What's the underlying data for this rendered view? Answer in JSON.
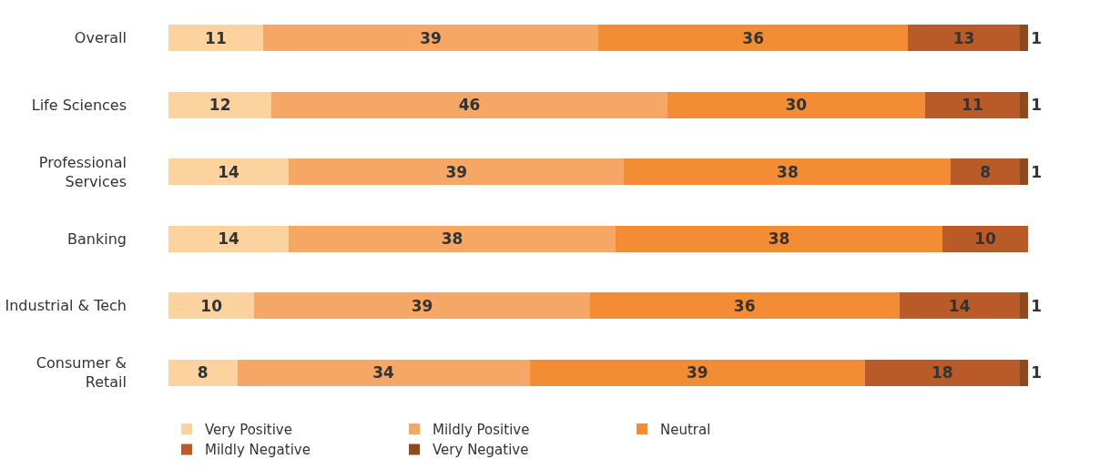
{
  "chart_data": {
    "type": "bar",
    "orientation": "horizontal",
    "stacked": true,
    "data_labels": true,
    "legend": "bottom",
    "categories": [
      "Overall",
      "Life Sciences",
      "Professional\nServices",
      "Banking",
      "Industrial & Tech",
      "Consumer &\nRetail"
    ],
    "series": [
      {
        "name": "Very Positive",
        "color": "#fcd29f",
        "values": [
          11,
          12,
          14,
          14,
          10,
          8
        ]
      },
      {
        "name": "Mildly Positive",
        "color": "#f6a765",
        "values": [
          39,
          46,
          39,
          38,
          39,
          34
        ]
      },
      {
        "name": "Neutral",
        "color": "#f28c35",
        "values": [
          36,
          30,
          38,
          38,
          36,
          39
        ]
      },
      {
        "name": "Mildly Negative",
        "color": "#b95b28",
        "values": [
          13,
          11,
          8,
          10,
          14,
          18
        ]
      },
      {
        "name": "Very Negative",
        "color": "#8c4a1e",
        "values": [
          1,
          1,
          1,
          null,
          1,
          1
        ]
      }
    ]
  }
}
